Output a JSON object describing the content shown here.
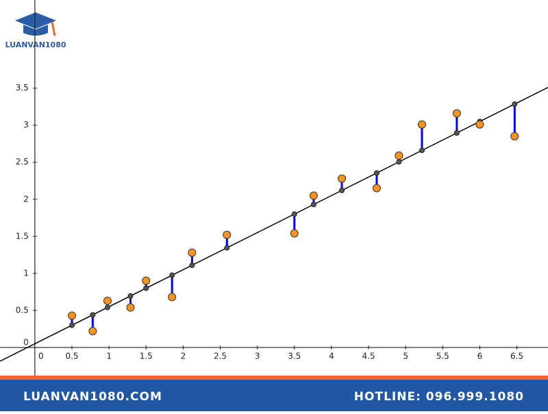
{
  "header": {
    "logo": "LUANVAN1080"
  },
  "chart_data": {
    "type": "scatter",
    "x": [
      0.5,
      0.78,
      0.98,
      1.29,
      1.5,
      1.85,
      2.12,
      2.59,
      3.5,
      3.76,
      4.14,
      4.61,
      4.91,
      5.22,
      5.69,
      6.0,
      6.47
    ],
    "series": [
      {
        "color": "#f7941d",
        "values": [
          0.43,
          0.22,
          0.63,
          0.54,
          0.9,
          0.68,
          1.28,
          1.52,
          1.54,
          2.05,
          2.28,
          2.15,
          2.59,
          3.01,
          3.16,
          3.01,
          2.85
        ]
      }
    ],
    "fit_line": {
      "slope": 0.5,
      "intercept": 0.05,
      "color": "#000000",
      "residual_color": "#0000ff"
    },
    "xlim": [
      -0.47,
      6.92
    ],
    "ylim": [
      -0.38,
      4.69
    ],
    "xticks": [
      0,
      0.5,
      1,
      1.5,
      2,
      2.5,
      3,
      3.5,
      4,
      4.5,
      5,
      5.5,
      6,
      6.5
    ],
    "yticks": [
      0,
      0.5,
      1,
      1.5,
      2,
      2.5,
      3,
      3.5
    ],
    "grid": false
  },
  "footer": {
    "website": "LUANVAN1080.COM",
    "hotline": "HOTLINE: 096.999.1080"
  }
}
